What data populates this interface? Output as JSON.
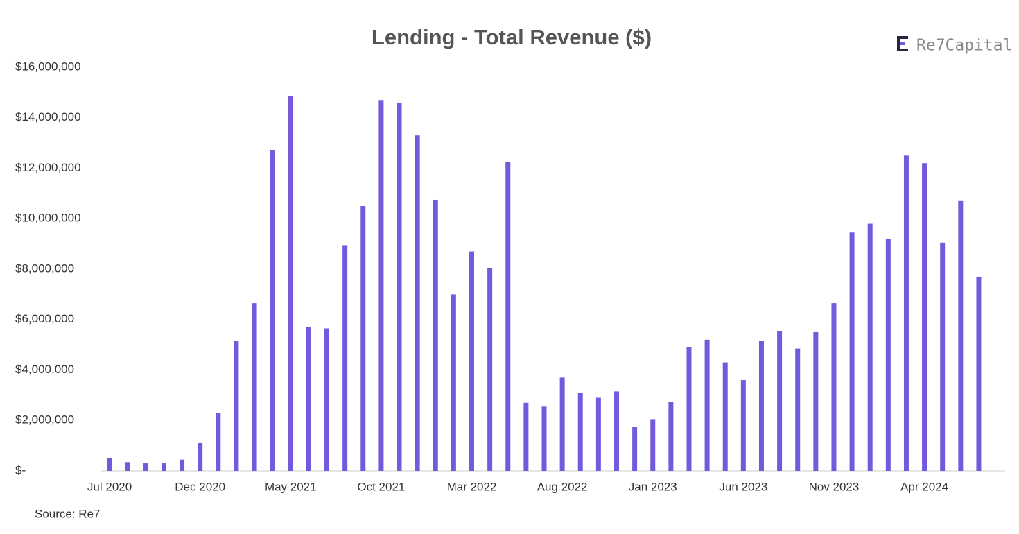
{
  "brand": "Re7Capital",
  "source": "Source: Re7",
  "chart_data": {
    "type": "bar",
    "title": "Lending - Total Revenue ($)",
    "color": "#7459dc",
    "categories": [
      "Jul 2020",
      null,
      null,
      null,
      null,
      "Dec 2020",
      null,
      null,
      null,
      null,
      "May 2021",
      null,
      null,
      null,
      null,
      "Oct 2021",
      null,
      null,
      null,
      null,
      "Mar 2022",
      null,
      null,
      null,
      null,
      "Aug 2022",
      null,
      null,
      null,
      null,
      "Jan 2023",
      null,
      null,
      null,
      null,
      "Jun 2023",
      null,
      null,
      null,
      null,
      "Nov 2023",
      null,
      null,
      null,
      null,
      "Apr 2024",
      null,
      null,
      null
    ],
    "values": [
      500000,
      350000,
      300000,
      320000,
      450000,
      1100000,
      2300000,
      5150000,
      6650000,
      12700000,
      14850000,
      5700000,
      5650000,
      8950000,
      10500000,
      14700000,
      14600000,
      13300000,
      10750000,
      7000000,
      8700000,
      8050000,
      12250000,
      2700000,
      2550000,
      3700000,
      3100000,
      2900000,
      3150000,
      1750000,
      2050000,
      2750000,
      4900000,
      5200000,
      4300000,
      3600000,
      5150000,
      5550000,
      4850000,
      5500000,
      6650000,
      9450000,
      9800000,
      9200000,
      12500000,
      12200000,
      9050000,
      10700000,
      7700000
    ],
    "ylim": [
      0,
      16000000
    ],
    "yticks": [
      {
        "value": 0,
        "label": "$-"
      },
      {
        "value": 2000000,
        "label": "$2,000,000"
      },
      {
        "value": 4000000,
        "label": "$4,000,000"
      },
      {
        "value": 6000000,
        "label": "$6,000,000"
      },
      {
        "value": 8000000,
        "label": "$8,000,000"
      },
      {
        "value": 10000000,
        "label": "$10,000,000"
      },
      {
        "value": 12000000,
        "label": "$12,000,000"
      },
      {
        "value": 14000000,
        "label": "$14,000,000"
      },
      {
        "value": 16000000,
        "label": "$16,000,000"
      }
    ],
    "grid": false
  }
}
